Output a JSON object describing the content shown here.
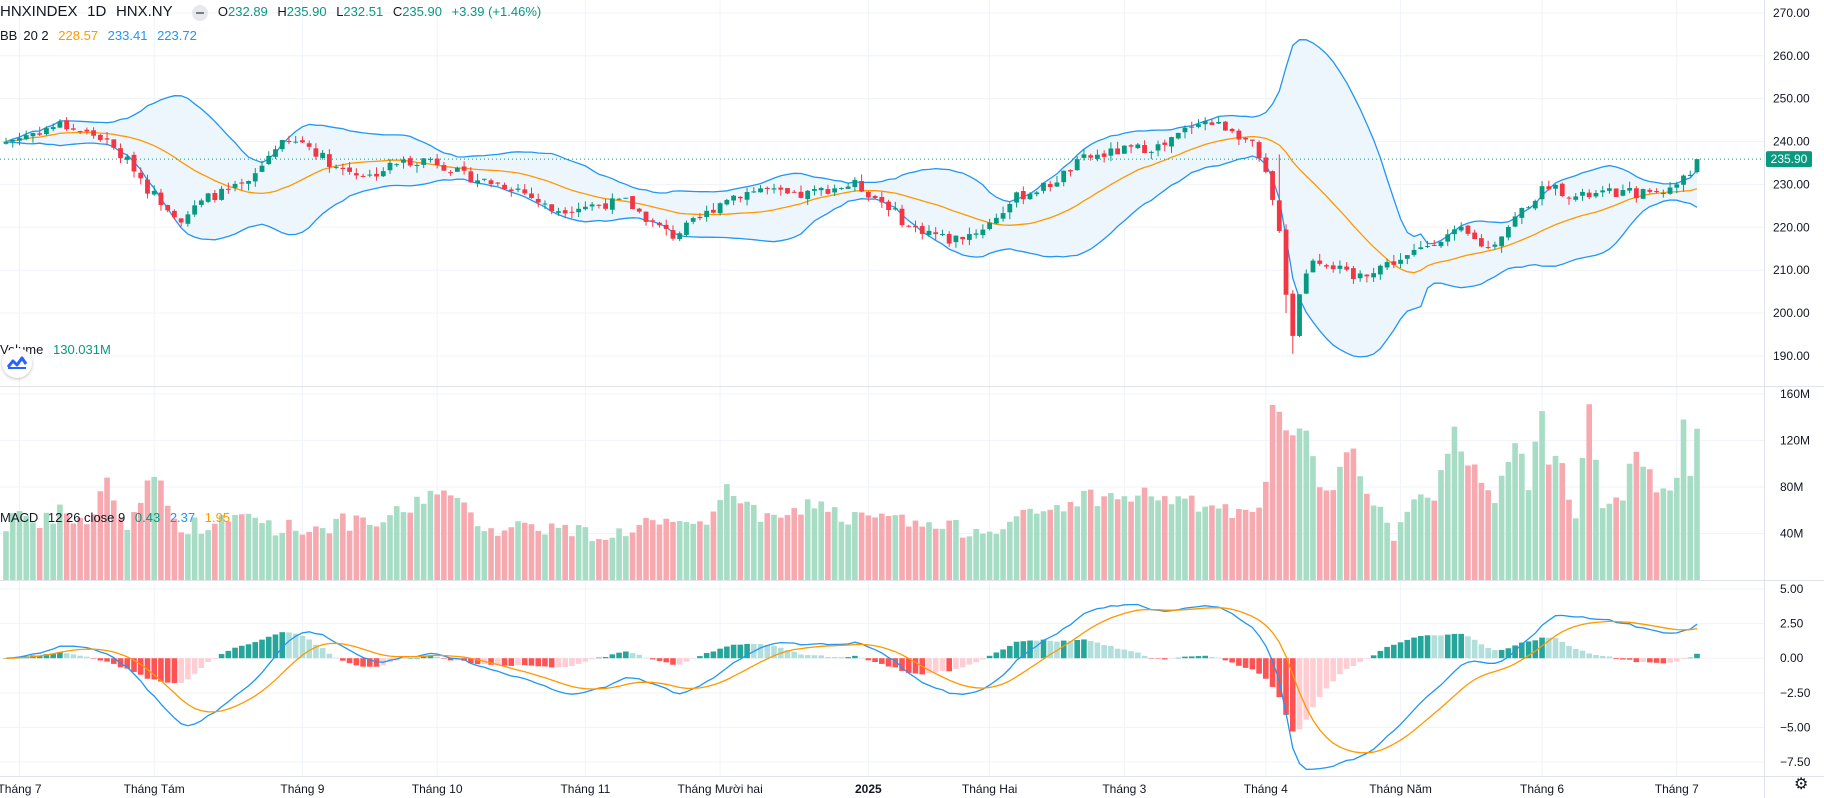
{
  "header": {
    "symbol": "HNXINDEX",
    "interval": "1D",
    "exchange": "HNX.NY",
    "ohlc": {
      "o_label": "O",
      "o": "232.89",
      "h_label": "H",
      "h": "235.90",
      "l_label": "L",
      "l": "232.51",
      "c_label": "C",
      "c": "235.90",
      "change": "+3.39 (+1.46%)"
    }
  },
  "bb_legend": {
    "label": "BB",
    "params": "20 2",
    "basis": "228.57",
    "upper": "233.41",
    "lower": "223.72"
  },
  "volume_legend": {
    "label": "Volume",
    "value": "130.031M"
  },
  "macd_legend": {
    "label": "MACD",
    "params": "12 26 close 9",
    "hist": "0.43",
    "macd": "2.37",
    "signal": "1.95"
  },
  "colors": {
    "up": "#089981",
    "down": "#f23645",
    "vol_up": "#a7dcc5",
    "vol_down": "#f7a9b0",
    "bb_basis": "#ff9800",
    "bb_band": "#2196f3",
    "bb_fill": "#eef6fd",
    "macd_line": "#2196f3",
    "signal_line": "#ff9800",
    "price_line": "#089981"
  },
  "icons": {
    "tv_logo": "tradingview-logo-icon",
    "settings": "gear-icon",
    "minimize": "minus-icon"
  },
  "chart_data": {
    "type": "candlestick",
    "price_axis": {
      "ylim": [
        183,
        273
      ],
      "ticks": [
        270,
        260,
        250,
        240,
        230,
        220,
        210,
        200,
        190
      ],
      "tick_labels": [
        "270.00",
        "260.00",
        "250.00",
        "240.00",
        "230.00",
        "220.00",
        "210.00",
        "200.00",
        "190.00"
      ],
      "last_price_label": "235.90"
    },
    "volume_axis": {
      "ylim": [
        0,
        165
      ],
      "ticks": [
        160,
        120,
        80,
        40
      ],
      "tick_labels": [
        "160M",
        "120M",
        "80M",
        "40M"
      ]
    },
    "macd_axis": {
      "ylim": [
        -8.5,
        5.5
      ],
      "ticks": [
        5,
        2.5,
        0,
        -2.5,
        -5,
        -7.5
      ],
      "tick_labels": [
        "5.00",
        "2.50",
        "0.00",
        "−2.50",
        "−5.00",
        "−7.50"
      ]
    },
    "x_labels": [
      {
        "bar": 2,
        "label": "Tháng 7"
      },
      {
        "bar": 22,
        "label": "Tháng Tám"
      },
      {
        "bar": 44,
        "label": "Tháng 9"
      },
      {
        "bar": 64,
        "label": "Tháng 10"
      },
      {
        "bar": 86,
        "label": "Tháng 11"
      },
      {
        "bar": 106,
        "label": "Tháng Mười hai"
      },
      {
        "bar": 128,
        "label": "2025"
      },
      {
        "bar": 146,
        "label": "Tháng Hai"
      },
      {
        "bar": 166,
        "label": "Tháng 3"
      },
      {
        "bar": 187,
        "label": "Tháng 4"
      },
      {
        "bar": 207,
        "label": "Tháng Năm"
      },
      {
        "bar": 228,
        "label": "Tháng 6"
      },
      {
        "bar": 248,
        "label": "Tháng 7"
      }
    ],
    "bars": 252,
    "close_anchors": [
      [
        0,
        240
      ],
      [
        8,
        244
      ],
      [
        14,
        241
      ],
      [
        19,
        234
      ],
      [
        21,
        229
      ],
      [
        26,
        222
      ],
      [
        30,
        227
      ],
      [
        36,
        230
      ],
      [
        40,
        239
      ],
      [
        44,
        240
      ],
      [
        49,
        234
      ],
      [
        54,
        232
      ],
      [
        58,
        235
      ],
      [
        63,
        236
      ],
      [
        68,
        232
      ],
      [
        76,
        229
      ],
      [
        81,
        224
      ],
      [
        86,
        225
      ],
      [
        92,
        226
      ],
      [
        96,
        221
      ],
      [
        99,
        218
      ],
      [
        103,
        222
      ],
      [
        107,
        227
      ],
      [
        112,
        229
      ],
      [
        117,
        227
      ],
      [
        122,
        229
      ],
      [
        126,
        230
      ],
      [
        131,
        225
      ],
      [
        134,
        220
      ],
      [
        137,
        219
      ],
      [
        140,
        217
      ],
      [
        144,
        219
      ],
      [
        146,
        221
      ],
      [
        150,
        227
      ],
      [
        155,
        230
      ],
      [
        160,
        236
      ],
      [
        166,
        238
      ],
      [
        172,
        239
      ],
      [
        177,
        245
      ],
      [
        182,
        243
      ],
      [
        185,
        239
      ],
      [
        187,
        232
      ],
      [
        189,
        220
      ],
      [
        190,
        205
      ],
      [
        191,
        195
      ],
      [
        192,
        205
      ],
      [
        194,
        213
      ],
      [
        197,
        211
      ],
      [
        200,
        208
      ],
      [
        204,
        211
      ],
      [
        208,
        213
      ],
      [
        212,
        217
      ],
      [
        216,
        219
      ],
      [
        220,
        215
      ],
      [
        225,
        224
      ],
      [
        229,
        230
      ],
      [
        233,
        227
      ],
      [
        238,
        228
      ],
      [
        243,
        228
      ],
      [
        247,
        229
      ],
      [
        250,
        232.5
      ],
      [
        251,
        235.9
      ]
    ],
    "bollinger": {
      "period": 20,
      "stddev": 2,
      "last_basis": 228.57,
      "last_upper": 233.41,
      "last_lower": 223.72
    },
    "volume_anchors_m": [
      [
        0,
        46
      ],
      [
        2,
        66
      ],
      [
        4,
        42
      ],
      [
        8,
        58
      ],
      [
        12,
        48
      ],
      [
        15,
        84
      ],
      [
        18,
        44
      ],
      [
        22,
        96
      ],
      [
        25,
        48
      ],
      [
        30,
        46
      ],
      [
        36,
        56
      ],
      [
        40,
        46
      ],
      [
        45,
        44
      ],
      [
        50,
        50
      ],
      [
        54,
        46
      ],
      [
        60,
        62
      ],
      [
        64,
        80
      ],
      [
        68,
        60
      ],
      [
        72,
        44
      ],
      [
        78,
        48
      ],
      [
        84,
        42
      ],
      [
        90,
        38
      ],
      [
        95,
        50
      ],
      [
        100,
        44
      ],
      [
        104,
        46
      ],
      [
        107,
        86
      ],
      [
        110,
        60
      ],
      [
        115,
        50
      ],
      [
        120,
        68
      ],
      [
        125,
        52
      ],
      [
        130,
        54
      ],
      [
        135,
        48
      ],
      [
        140,
        44
      ],
      [
        145,
        44
      ],
      [
        150,
        52
      ],
      [
        155,
        60
      ],
      [
        160,
        72
      ],
      [
        165,
        70
      ],
      [
        170,
        74
      ],
      [
        175,
        66
      ],
      [
        180,
        62
      ],
      [
        185,
        52
      ],
      [
        187,
        80
      ],
      [
        188,
        146
      ],
      [
        189,
        138
      ],
      [
        191,
        118
      ],
      [
        193,
        132
      ],
      [
        195,
        86
      ],
      [
        197,
        82
      ],
      [
        200,
        112
      ],
      [
        203,
        64
      ],
      [
        206,
        40
      ],
      [
        209,
        70
      ],
      [
        212,
        66
      ],
      [
        215,
        128
      ],
      [
        218,
        94
      ],
      [
        221,
        74
      ],
      [
        224,
        120
      ],
      [
        226,
        82
      ],
      [
        228,
        142
      ],
      [
        229,
        106
      ],
      [
        231,
        96
      ],
      [
        233,
        58
      ],
      [
        235,
        158
      ],
      [
        237,
        64
      ],
      [
        240,
        76
      ],
      [
        242,
        110
      ],
      [
        245,
        78
      ],
      [
        248,
        80
      ],
      [
        249,
        138
      ],
      [
        250,
        92
      ],
      [
        251,
        130
      ]
    ],
    "last_volume_label": "130.031M",
    "macd": {
      "fast": 12,
      "slow": 26,
      "signal": 9,
      "last_hist": 0.43,
      "last_macd": 2.37,
      "last_signal": 1.95
    }
  }
}
